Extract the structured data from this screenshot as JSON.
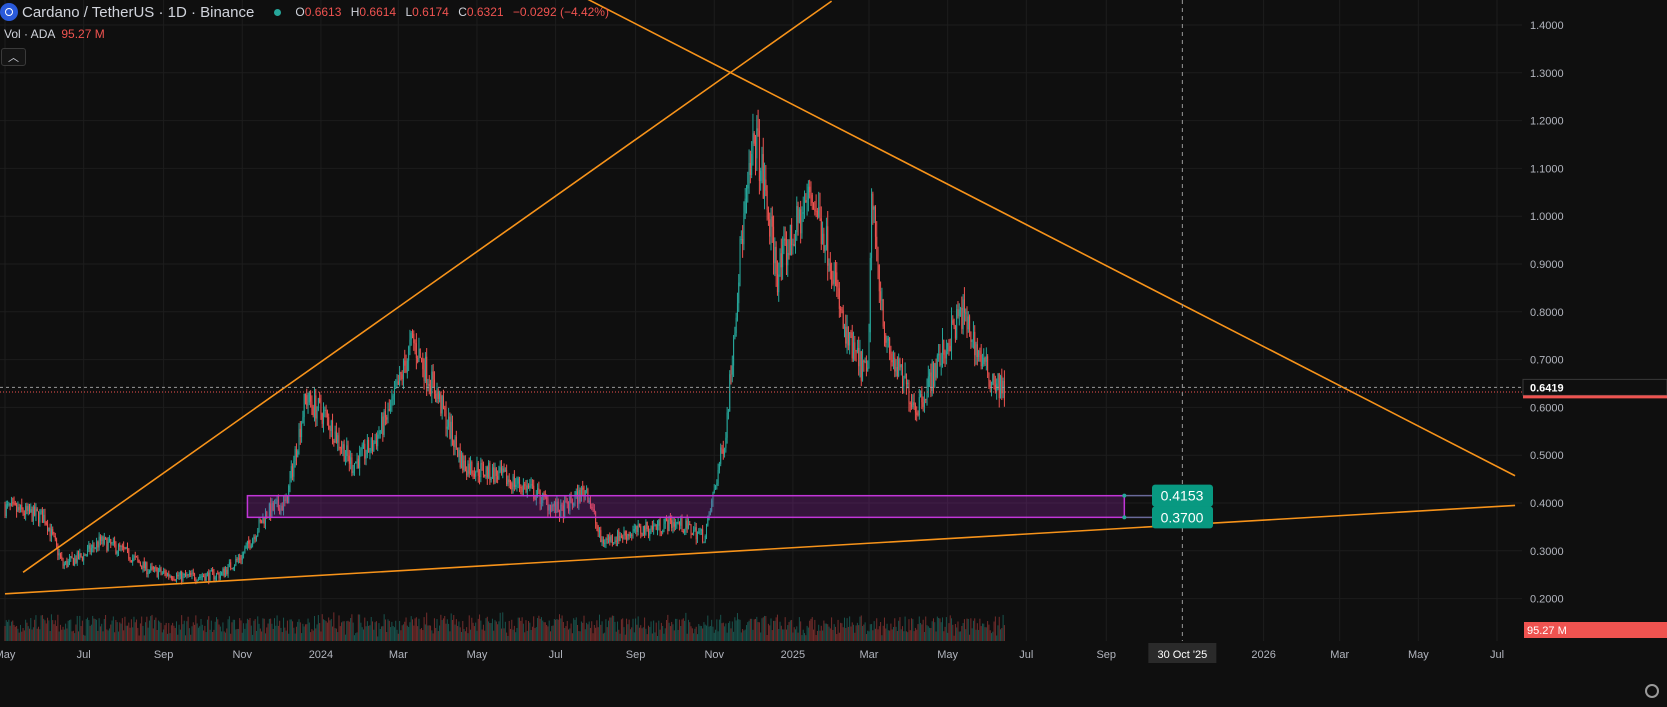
{
  "header": {
    "symbol": "Cardano / TetherUS · 1D · Binance",
    "ohlc": [
      {
        "k": "O",
        "v": "0.6613"
      },
      {
        "k": "H",
        "v": "0.6614"
      },
      {
        "k": "L",
        "v": "0.6174"
      },
      {
        "k": "C",
        "v": "0.6321"
      }
    ],
    "change": "−0.0292 (−4.42%)",
    "volume_label": "Vol · ADA",
    "volume_value": "95.27 M"
  },
  "colors": {
    "background": "#0f0f0f",
    "up": "#26a69a",
    "down": "#ef5350",
    "trendline": "#f7931a",
    "zone": "#9c27b0",
    "badge": "#089981"
  },
  "chart_data": {
    "type": "candlestick",
    "symbol": "ADAUSDT",
    "interval": "1D",
    "y_ticks": [
      "0.2000",
      "0.3000",
      "0.4000",
      "0.5000",
      "0.6000",
      "0.7000",
      "0.8000",
      "0.9000",
      "1.0000",
      "1.1000",
      "1.2000",
      "1.3000",
      "1.4000"
    ],
    "ylim": [
      0.125,
      1.45
    ],
    "x_ticks": [
      {
        "label": "May",
        "date": "2023-05-01"
      },
      {
        "label": "Jul",
        "date": "2023-07-01"
      },
      {
        "label": "Sep",
        "date": "2023-09-01"
      },
      {
        "label": "Nov",
        "date": "2023-11-01"
      },
      {
        "label": "2024",
        "date": "2024-01-01"
      },
      {
        "label": "Mar",
        "date": "2024-03-01"
      },
      {
        "label": "May",
        "date": "2024-05-01"
      },
      {
        "label": "Jul",
        "date": "2024-07-01"
      },
      {
        "label": "Sep",
        "date": "2024-09-01"
      },
      {
        "label": "Nov",
        "date": "2024-11-01"
      },
      {
        "label": "2025",
        "date": "2025-01-01"
      },
      {
        "label": "Mar",
        "date": "2025-03-01"
      },
      {
        "label": "May",
        "date": "2025-05-01"
      },
      {
        "label": "Jul",
        "date": "2025-07-01"
      },
      {
        "label": "Sep",
        "date": "2025-09-01"
      },
      {
        "label": "2026",
        "date": "2026-01-01"
      },
      {
        "label": "Mar",
        "date": "2026-03-01"
      },
      {
        "label": "May",
        "date": "2026-05-01"
      },
      {
        "label": "Jul",
        "date": "2026-07-01"
      }
    ],
    "price_path": [
      {
        "date": "2023-05-01",
        "price": 0.39
      },
      {
        "date": "2023-06-01",
        "price": 0.37
      },
      {
        "date": "2023-06-15",
        "price": 0.27
      },
      {
        "date": "2023-07-01",
        "price": 0.29
      },
      {
        "date": "2023-07-14",
        "price": 0.32
      },
      {
        "date": "2023-08-01",
        "price": 0.3
      },
      {
        "date": "2023-08-20",
        "price": 0.26
      },
      {
        "date": "2023-09-15",
        "price": 0.245
      },
      {
        "date": "2023-10-15",
        "price": 0.25
      },
      {
        "date": "2023-11-01",
        "price": 0.29
      },
      {
        "date": "2023-11-20",
        "price": 0.38
      },
      {
        "date": "2023-12-05",
        "price": 0.4
      },
      {
        "date": "2023-12-20",
        "price": 0.62
      },
      {
        "date": "2024-01-05",
        "price": 0.58
      },
      {
        "date": "2024-01-25",
        "price": 0.48
      },
      {
        "date": "2024-02-10",
        "price": 0.52
      },
      {
        "date": "2024-02-25",
        "price": 0.6
      },
      {
        "date": "2024-03-12",
        "price": 0.74
      },
      {
        "date": "2024-04-01",
        "price": 0.62
      },
      {
        "date": "2024-04-20",
        "price": 0.48
      },
      {
        "date": "2024-05-15",
        "price": 0.46
      },
      {
        "date": "2024-06-10",
        "price": 0.43
      },
      {
        "date": "2024-07-05",
        "price": 0.38
      },
      {
        "date": "2024-07-25",
        "price": 0.43
      },
      {
        "date": "2024-08-05",
        "price": 0.32
      },
      {
        "date": "2024-09-01",
        "price": 0.34
      },
      {
        "date": "2024-10-01",
        "price": 0.36
      },
      {
        "date": "2024-10-25",
        "price": 0.33
      },
      {
        "date": "2024-11-10",
        "price": 0.55
      },
      {
        "date": "2024-11-22",
        "price": 0.95
      },
      {
        "date": "2024-12-03",
        "price": 1.17
      },
      {
        "date": "2024-12-20",
        "price": 0.88
      },
      {
        "date": "2025-01-15",
        "price": 1.05
      },
      {
        "date": "2025-01-30",
        "price": 0.92
      },
      {
        "date": "2025-02-10",
        "price": 0.75
      },
      {
        "date": "2025-02-28",
        "price": 0.66
      },
      {
        "date": "2025-03-03",
        "price": 1.03
      },
      {
        "date": "2025-03-15",
        "price": 0.72
      },
      {
        "date": "2025-04-07",
        "price": 0.6
      },
      {
        "date": "2025-04-25",
        "price": 0.7
      },
      {
        "date": "2025-05-12",
        "price": 0.8
      },
      {
        "date": "2025-05-30",
        "price": 0.68
      },
      {
        "date": "2025-06-14",
        "price": 0.6321
      }
    ],
    "current_price": "0.6419",
    "current_price_value": 0.6419,
    "last_close_value": 0.6321,
    "crosshair": {
      "date_label": "30 Oct '25",
      "date": "2025-10-30"
    },
    "trendlines": [
      {
        "from": {
          "date": "2023-05-15",
          "price": 0.255
        },
        "to": {
          "date": "2025-01-31",
          "price": 1.45
        }
      },
      {
        "from": {
          "date": "2024-06-01",
          "price": 1.53
        },
        "to": {
          "date": "2026-07-15",
          "price": 0.457
        }
      },
      {
        "from": {
          "date": "2023-05-01",
          "price": 0.21
        },
        "to": {
          "date": "2026-07-15",
          "price": 0.395
        }
      }
    ],
    "zone": {
      "from_date": "2023-11-05",
      "to_date": "2025-09-15",
      "top": 0.4153,
      "bottom": 0.37,
      "top_label": "0.4153",
      "bottom_label": "0.3700"
    },
    "volume_label": "95.27 M"
  }
}
